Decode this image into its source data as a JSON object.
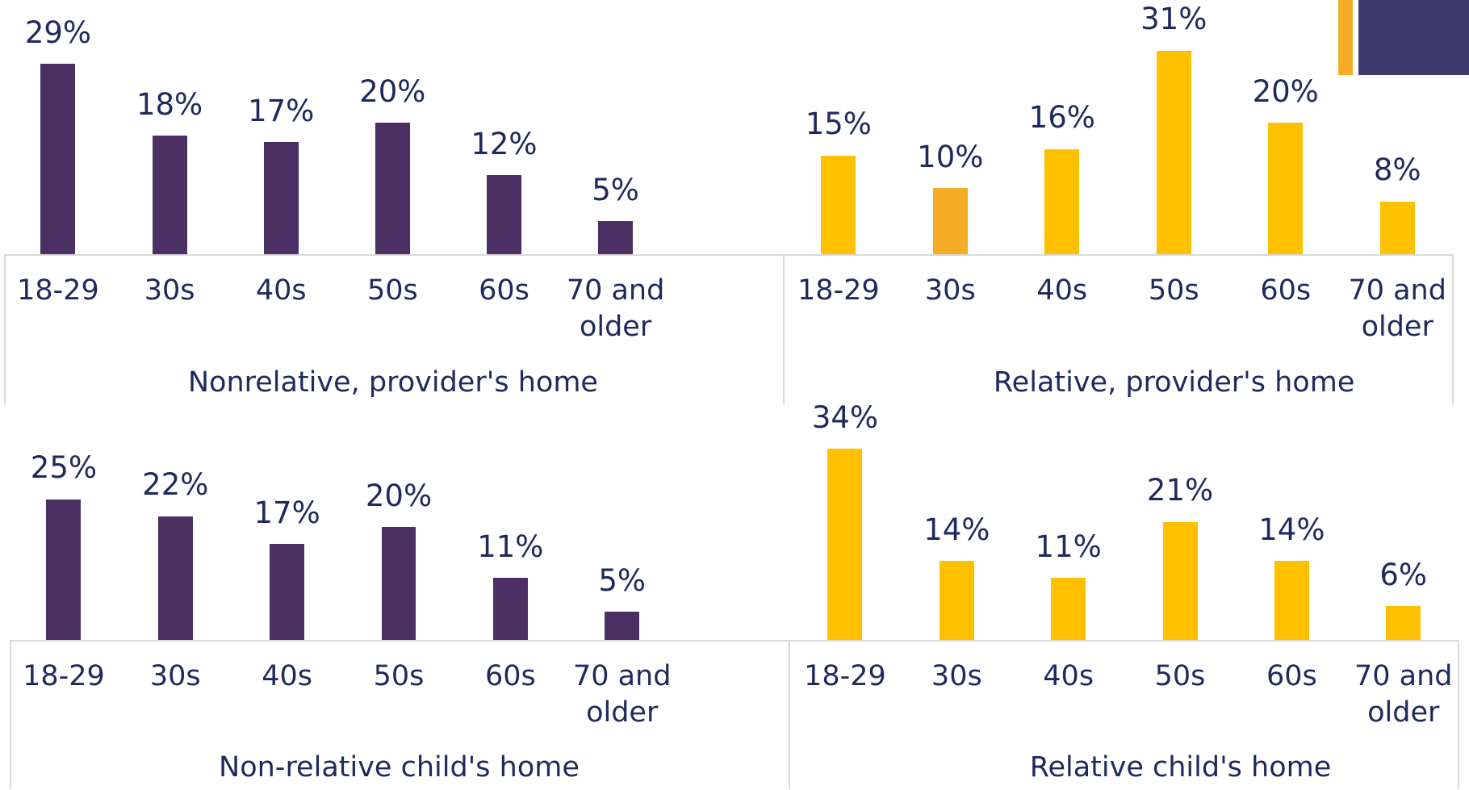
{
  "chart_data": [
    {
      "type": "bar",
      "xlabel": "Nonrelative, provider's home",
      "categories": [
        "18-29",
        "30s",
        "40s",
        "50s",
        "60s",
        "70 and older"
      ],
      "values": [
        29,
        18,
        17,
        20,
        12,
        5
      ],
      "value_labels": [
        "29%",
        "18%",
        "17%",
        "20%",
        "12%",
        "5%"
      ],
      "colors": [
        "#4b3163",
        "#4b3163",
        "#4b3163",
        "#4b3163",
        "#4b3163",
        "#4b3163"
      ],
      "ylim": [
        0,
        35
      ]
    },
    {
      "type": "bar",
      "xlabel": "Relative, provider's home",
      "categories": [
        "18-29",
        "30s",
        "40s",
        "50s",
        "60s",
        "70 and older"
      ],
      "values": [
        15,
        10,
        16,
        31,
        20,
        8
      ],
      "value_labels": [
        "15%",
        "10%",
        "16%",
        "31%",
        "20%",
        "8%"
      ],
      "colors": [
        "#ffc000",
        "#f5ad27",
        "#ffc000",
        "#ffc000",
        "#ffc000",
        "#ffc000"
      ],
      "ylim": [
        0,
        35
      ]
    },
    {
      "type": "bar",
      "xlabel": "Non-relative child's home",
      "categories": [
        "18-29",
        "30s",
        "40s",
        "50s",
        "60s",
        "70 and older"
      ],
      "values": [
        25,
        22,
        17,
        20,
        11,
        5
      ],
      "value_labels": [
        "25%",
        "22%",
        "17%",
        "20%",
        "11%",
        "5%"
      ],
      "colors": [
        "#4b3163",
        "#4b3163",
        "#4b3163",
        "#4b3163",
        "#4b3163",
        "#4b3163"
      ],
      "ylim": [
        0,
        35
      ]
    },
    {
      "type": "bar",
      "xlabel": "Relative child's home",
      "categories": [
        "18-29",
        "30s",
        "40s",
        "50s",
        "60s",
        "70 and older"
      ],
      "values": [
        34,
        14,
        11,
        21,
        14,
        6
      ],
      "value_labels": [
        "34%",
        "14%",
        "11%",
        "21%",
        "14%",
        "6%"
      ],
      "colors": [
        "#ffc000",
        "#ffc000",
        "#ffc000",
        "#ffc000",
        "#ffc000",
        "#ffc000"
      ],
      "ylim": [
        0,
        35
      ]
    }
  ]
}
